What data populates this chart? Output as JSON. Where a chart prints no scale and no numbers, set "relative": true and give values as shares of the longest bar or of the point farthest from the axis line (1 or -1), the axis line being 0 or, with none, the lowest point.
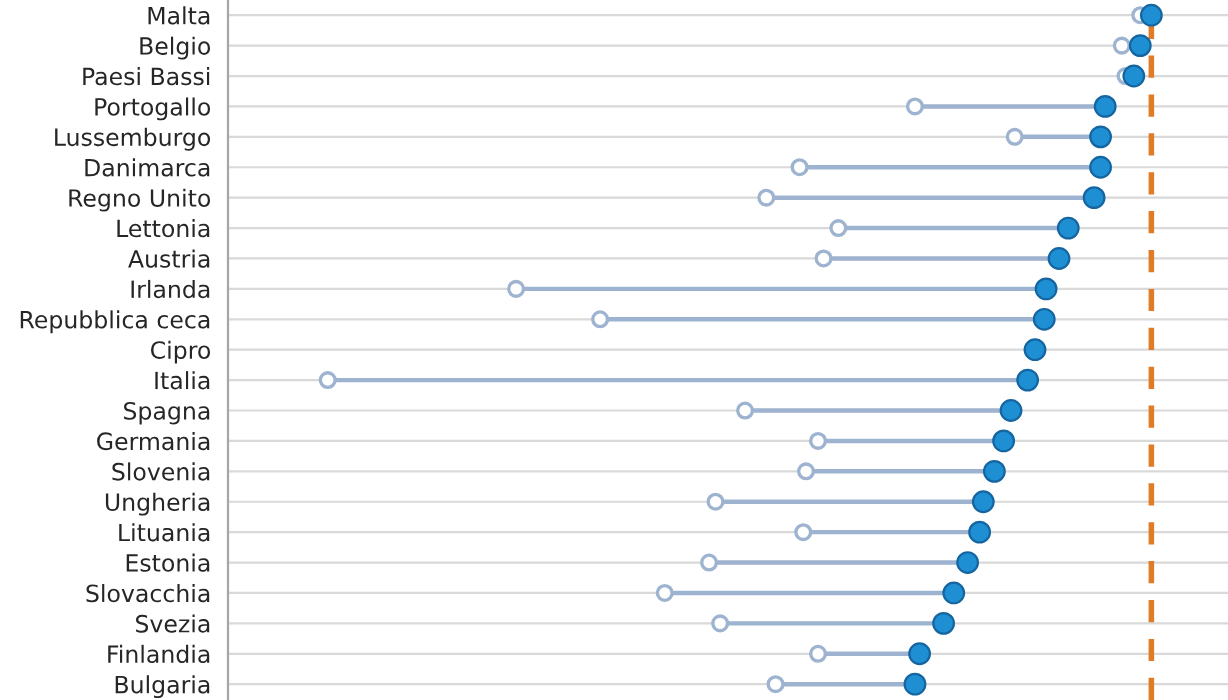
{
  "chart_data": {
    "type": "scatter",
    "orientation": "horizontal",
    "relative": true,
    "grid": "y",
    "categories": [
      "Malta",
      "Belgio",
      "Paesi Bassi",
      "Portogallo",
      "Lussemburgo",
      "Danimarca",
      "Regno Unito",
      "Lettonia",
      "Austria",
      "Irlanda",
      "Repubblica ceca",
      "Cipro",
      "Italia",
      "Spagna",
      "Germania",
      "Slovenia",
      "Ungheria",
      "Lituania",
      "Estonia",
      "Slovacchia",
      "Svezia",
      "Finlandia",
      "Bulgaria"
    ],
    "series": [
      {
        "color": "#9db3cf",
        "marker": "circle",
        "values": [
          0.988,
          0.968,
          0.972,
          0.744,
          0.852,
          0.619,
          0.583,
          0.661,
          0.645,
          0.312,
          0.403,
          null,
          0.108,
          0.56,
          0.639,
          0.626,
          0.528,
          0.623,
          0.521,
          0.473,
          0.533,
          0.639,
          0.593
        ]
      },
      {
        "color": "#1f8fd4",
        "marker": "circle",
        "values": [
          1.0,
          0.988,
          0.981,
          0.95,
          0.945,
          0.945,
          0.938,
          0.91,
          0.9,
          0.886,
          0.884,
          0.874,
          0.866,
          0.848,
          0.84,
          0.83,
          0.818,
          0.814,
          0.801,
          0.786,
          0.775,
          0.749,
          0.744
        ]
      }
    ],
    "ref_lines": [
      {
        "axis": "x",
        "value": 1.0,
        "color": "#e07b28",
        "line_style": "dashed"
      }
    ]
  }
}
